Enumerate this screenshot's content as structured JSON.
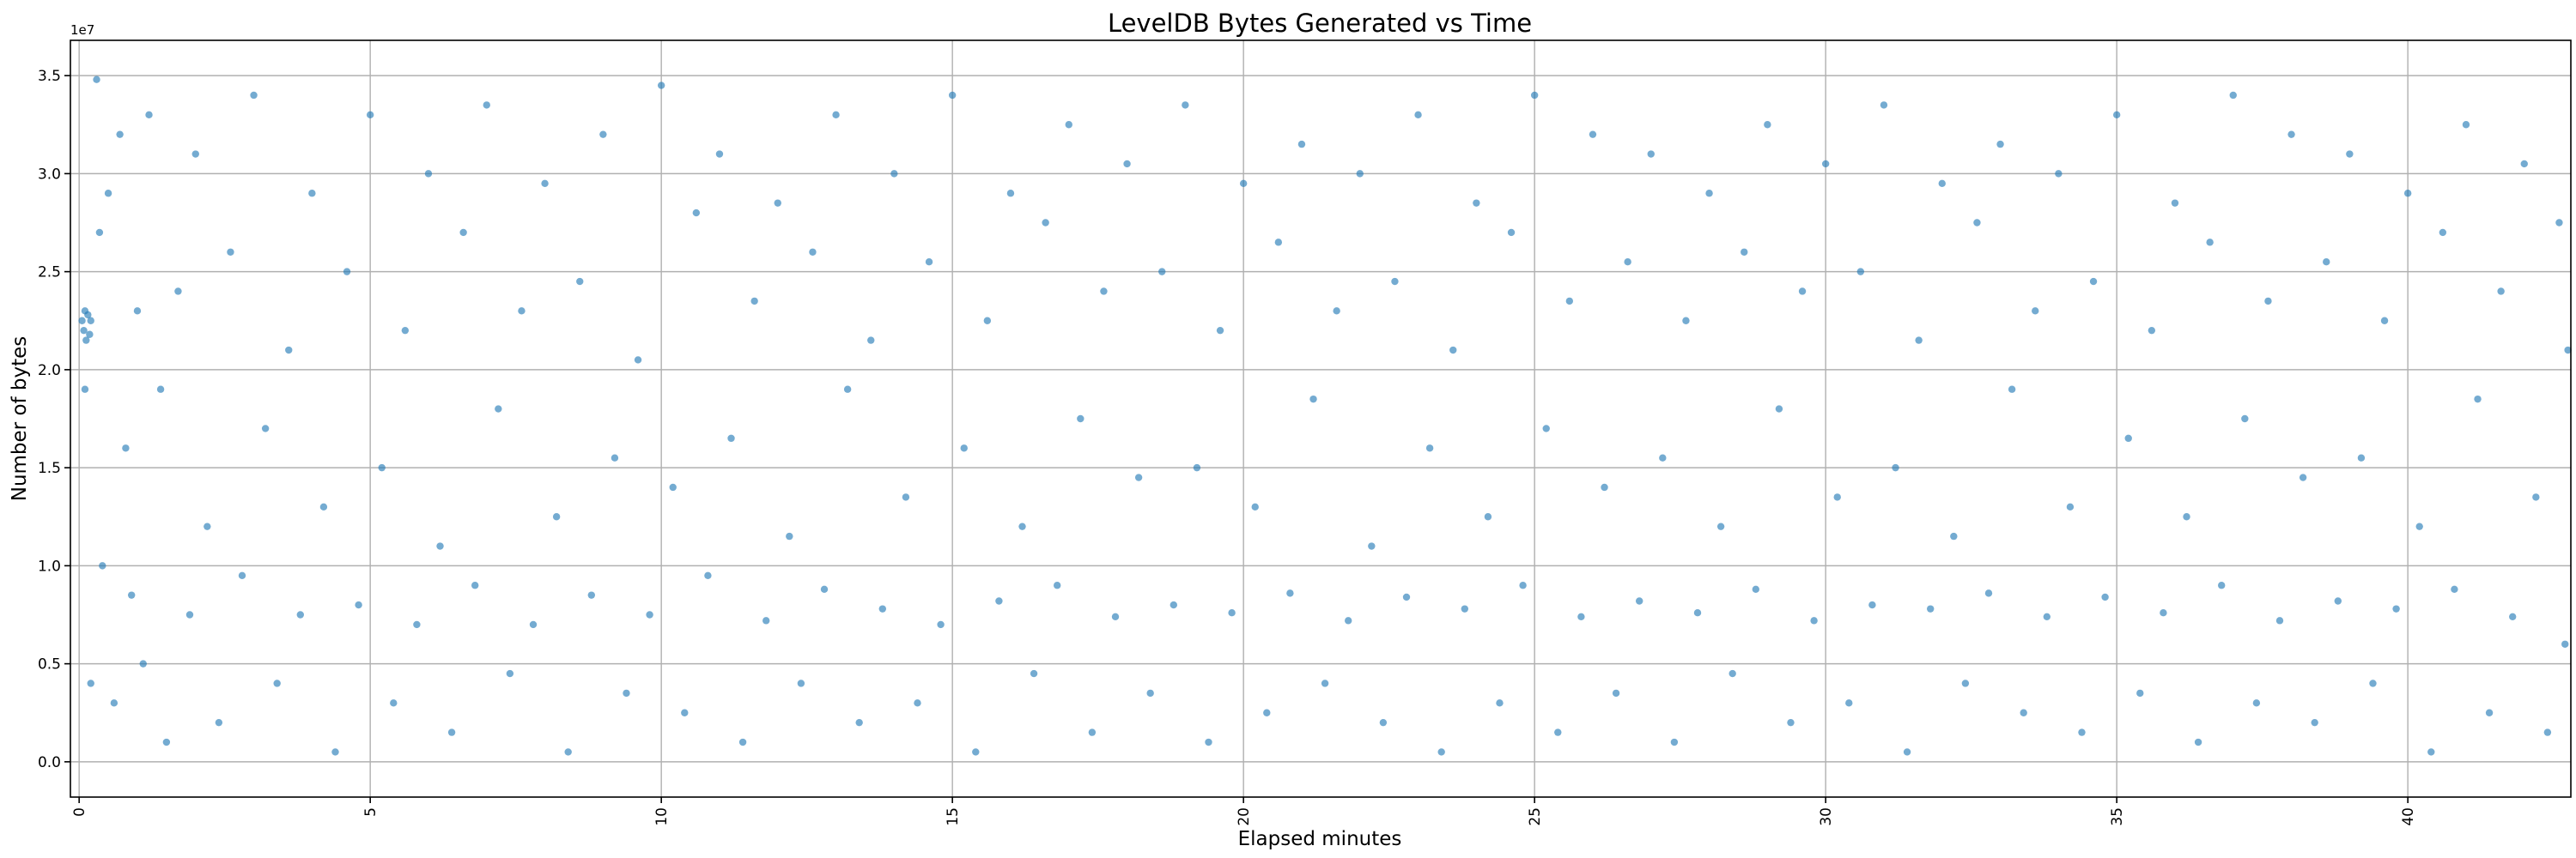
{
  "chart_data": {
    "type": "scatter",
    "title": "LevelDB Bytes Generated vs Time",
    "xlabel": "Elapsed minutes",
    "ylabel": "Number of bytes",
    "y_offset_label": "1e7",
    "xlim": [
      -0.15,
      42.8
    ],
    "ylim": [
      -0.18,
      3.68
    ],
    "y_scale_multiplier": 10000000,
    "grid": true,
    "legend": "none",
    "color": "#1f77b4",
    "x_ticks": [
      {
        "value": 0,
        "label": "0"
      },
      {
        "value": 5,
        "label": "5"
      },
      {
        "value": 10,
        "label": "10"
      },
      {
        "value": 15,
        "label": "15"
      },
      {
        "value": 20,
        "label": "20"
      },
      {
        "value": 25,
        "label": "25"
      },
      {
        "value": 30,
        "label": "30"
      },
      {
        "value": 35,
        "label": "35"
      },
      {
        "value": 40,
        "label": "40"
      }
    ],
    "y_ticks": [
      {
        "value": 0.0,
        "label": "0.0"
      },
      {
        "value": 0.5,
        "label": "0.5"
      },
      {
        "value": 1.0,
        "label": "1.0"
      },
      {
        "value": 1.5,
        "label": "1.5"
      },
      {
        "value": 2.0,
        "label": "2.0"
      },
      {
        "value": 2.5,
        "label": "2.5"
      },
      {
        "value": 3.0,
        "label": "3.0"
      },
      {
        "value": 3.5,
        "label": "3.5"
      }
    ],
    "series": [
      {
        "points": [
          [
            0.05,
            2.25
          ],
          [
            0.08,
            2.2
          ],
          [
            0.1,
            2.3
          ],
          [
            0.12,
            2.15
          ],
          [
            0.15,
            2.28
          ],
          [
            0.18,
            2.18
          ],
          [
            0.2,
            2.25
          ],
          [
            0.1,
            1.9
          ],
          [
            0.2,
            0.4
          ],
          [
            0.3,
            3.48
          ],
          [
            0.35,
            2.7
          ],
          [
            0.4,
            1.0
          ],
          [
            0.5,
            2.9
          ],
          [
            0.6,
            0.3
          ],
          [
            0.7,
            3.2
          ],
          [
            0.8,
            1.6
          ],
          [
            0.9,
            0.85
          ],
          [
            1.0,
            2.3
          ],
          [
            1.1,
            0.5
          ],
          [
            1.2,
            3.3
          ],
          [
            1.4,
            1.9
          ],
          [
            1.5,
            0.1
          ],
          [
            1.7,
            2.4
          ],
          [
            1.9,
            0.75
          ],
          [
            2.0,
            3.1
          ],
          [
            2.2,
            1.2
          ],
          [
            2.4,
            0.2
          ],
          [
            2.6,
            2.6
          ],
          [
            2.8,
            0.95
          ],
          [
            3.0,
            3.4
          ],
          [
            3.2,
            1.7
          ],
          [
            3.4,
            0.4
          ],
          [
            3.6,
            2.1
          ],
          [
            3.8,
            0.75
          ],
          [
            4.0,
            2.9
          ],
          [
            4.2,
            1.3
          ],
          [
            4.4,
            0.05
          ],
          [
            4.6,
            2.5
          ],
          [
            4.8,
            0.8
          ],
          [
            5.0,
            3.3
          ],
          [
            5.2,
            1.5
          ],
          [
            5.4,
            0.3
          ],
          [
            5.6,
            2.2
          ],
          [
            5.8,
            0.7
          ],
          [
            6.0,
            3.0
          ],
          [
            6.2,
            1.1
          ],
          [
            6.4,
            0.15
          ],
          [
            6.6,
            2.7
          ],
          [
            6.8,
            0.9
          ],
          [
            7.0,
            3.35
          ],
          [
            7.2,
            1.8
          ],
          [
            7.4,
            0.45
          ],
          [
            7.6,
            2.3
          ],
          [
            7.8,
            0.7
          ],
          [
            8.0,
            2.95
          ],
          [
            8.2,
            1.25
          ],
          [
            8.4,
            0.05
          ],
          [
            8.6,
            2.45
          ],
          [
            8.8,
            0.85
          ],
          [
            9.0,
            3.2
          ],
          [
            9.2,
            1.55
          ],
          [
            9.4,
            0.35
          ],
          [
            9.6,
            2.05
          ],
          [
            9.8,
            0.75
          ],
          [
            10.0,
            3.45
          ],
          [
            10.2,
            1.4
          ],
          [
            10.4,
            0.25
          ],
          [
            10.6,
            2.8
          ],
          [
            10.8,
            0.95
          ],
          [
            11.0,
            3.1
          ],
          [
            11.2,
            1.65
          ],
          [
            11.4,
            0.1
          ],
          [
            11.6,
            2.35
          ],
          [
            11.8,
            0.72
          ],
          [
            12.0,
            2.85
          ],
          [
            12.2,
            1.15
          ],
          [
            12.4,
            0.4
          ],
          [
            12.6,
            2.6
          ],
          [
            12.8,
            0.88
          ],
          [
            13.0,
            3.3
          ],
          [
            13.2,
            1.9
          ],
          [
            13.4,
            0.2
          ],
          [
            13.6,
            2.15
          ],
          [
            13.8,
            0.78
          ],
          [
            14.0,
            3.0
          ],
          [
            14.2,
            1.35
          ],
          [
            14.4,
            0.3
          ],
          [
            14.6,
            2.55
          ],
          [
            14.8,
            0.7
          ],
          [
            15.0,
            3.4
          ],
          [
            15.2,
            1.6
          ],
          [
            15.4,
            0.05
          ],
          [
            15.6,
            2.25
          ],
          [
            15.8,
            0.82
          ],
          [
            16.0,
            2.9
          ],
          [
            16.2,
            1.2
          ],
          [
            16.4,
            0.45
          ],
          [
            16.6,
            2.75
          ],
          [
            16.8,
            0.9
          ],
          [
            17.0,
            3.25
          ],
          [
            17.2,
            1.75
          ],
          [
            17.4,
            0.15
          ],
          [
            17.6,
            2.4
          ],
          [
            17.8,
            0.74
          ],
          [
            18.0,
            3.05
          ],
          [
            18.2,
            1.45
          ],
          [
            18.4,
            0.35
          ],
          [
            18.6,
            2.5
          ],
          [
            18.8,
            0.8
          ],
          [
            19.0,
            3.35
          ],
          [
            19.2,
            1.5
          ],
          [
            19.4,
            0.1
          ],
          [
            19.6,
            2.2
          ],
          [
            19.8,
            0.76
          ],
          [
            20.0,
            2.95
          ],
          [
            20.2,
            1.3
          ],
          [
            20.4,
            0.25
          ],
          [
            20.6,
            2.65
          ],
          [
            20.8,
            0.86
          ],
          [
            21.0,
            3.15
          ],
          [
            21.2,
            1.85
          ],
          [
            21.4,
            0.4
          ],
          [
            21.6,
            2.3
          ],
          [
            21.8,
            0.72
          ],
          [
            22.0,
            3.0
          ],
          [
            22.2,
            1.1
          ],
          [
            22.4,
            0.2
          ],
          [
            22.6,
            2.45
          ],
          [
            22.8,
            0.84
          ],
          [
            23.0,
            3.3
          ],
          [
            23.2,
            1.6
          ],
          [
            23.4,
            0.05
          ],
          [
            23.6,
            2.1
          ],
          [
            23.8,
            0.78
          ],
          [
            24.0,
            2.85
          ],
          [
            24.2,
            1.25
          ],
          [
            24.4,
            0.3
          ],
          [
            24.6,
            2.7
          ],
          [
            24.8,
            0.9
          ],
          [
            25.0,
            3.4
          ],
          [
            25.2,
            1.7
          ],
          [
            25.4,
            0.15
          ],
          [
            25.6,
            2.35
          ],
          [
            25.8,
            0.74
          ],
          [
            26.0,
            3.2
          ],
          [
            26.2,
            1.4
          ],
          [
            26.4,
            0.35
          ],
          [
            26.6,
            2.55
          ],
          [
            26.8,
            0.82
          ],
          [
            27.0,
            3.1
          ],
          [
            27.2,
            1.55
          ],
          [
            27.4,
            0.1
          ],
          [
            27.6,
            2.25
          ],
          [
            27.8,
            0.76
          ],
          [
            28.0,
            2.9
          ],
          [
            28.2,
            1.2
          ],
          [
            28.4,
            0.45
          ],
          [
            28.6,
            2.6
          ],
          [
            28.8,
            0.88
          ],
          [
            29.0,
            3.25
          ],
          [
            29.2,
            1.8
          ],
          [
            29.4,
            0.2
          ],
          [
            29.6,
            2.4
          ],
          [
            29.8,
            0.72
          ],
          [
            30.0,
            3.05
          ],
          [
            30.2,
            1.35
          ],
          [
            30.4,
            0.3
          ],
          [
            30.6,
            2.5
          ],
          [
            30.8,
            0.8
          ],
          [
            31.0,
            3.35
          ],
          [
            31.2,
            1.5
          ],
          [
            31.4,
            0.05
          ],
          [
            31.6,
            2.15
          ],
          [
            31.8,
            0.78
          ],
          [
            32.0,
            2.95
          ],
          [
            32.2,
            1.15
          ],
          [
            32.4,
            0.4
          ],
          [
            32.6,
            2.75
          ],
          [
            32.8,
            0.86
          ],
          [
            33.0,
            3.15
          ],
          [
            33.2,
            1.9
          ],
          [
            33.4,
            0.25
          ],
          [
            33.6,
            2.3
          ],
          [
            33.8,
            0.74
          ],
          [
            34.0,
            3.0
          ],
          [
            34.2,
            1.3
          ],
          [
            34.4,
            0.15
          ],
          [
            34.6,
            2.45
          ],
          [
            34.8,
            0.84
          ],
          [
            35.0,
            3.3
          ],
          [
            35.2,
            1.65
          ],
          [
            35.4,
            0.35
          ],
          [
            35.6,
            2.2
          ],
          [
            35.8,
            0.76
          ],
          [
            36.0,
            2.85
          ],
          [
            36.2,
            1.25
          ],
          [
            36.4,
            0.1
          ],
          [
            36.6,
            2.65
          ],
          [
            36.8,
            0.9
          ],
          [
            37.0,
            3.4
          ],
          [
            37.2,
            1.75
          ],
          [
            37.4,
            0.3
          ],
          [
            37.6,
            2.35
          ],
          [
            37.8,
            0.72
          ],
          [
            38.0,
            3.2
          ],
          [
            38.2,
            1.45
          ],
          [
            38.4,
            0.2
          ],
          [
            38.6,
            2.55
          ],
          [
            38.8,
            0.82
          ],
          [
            39.0,
            3.1
          ],
          [
            39.2,
            1.55
          ],
          [
            39.4,
            0.4
          ],
          [
            39.6,
            2.25
          ],
          [
            39.8,
            0.78
          ],
          [
            40.0,
            2.9
          ],
          [
            40.2,
            1.2
          ],
          [
            40.4,
            0.05
          ],
          [
            40.6,
            2.7
          ],
          [
            40.8,
            0.88
          ],
          [
            41.0,
            3.25
          ],
          [
            41.2,
            1.85
          ],
          [
            41.4,
            0.25
          ],
          [
            41.6,
            2.4
          ],
          [
            41.8,
            0.74
          ],
          [
            42.0,
            3.05
          ],
          [
            42.2,
            1.35
          ],
          [
            42.4,
            0.15
          ],
          [
            42.6,
            2.75
          ],
          [
            42.7,
            0.6
          ],
          [
            42.75,
            2.1
          ]
        ]
      }
    ]
  }
}
